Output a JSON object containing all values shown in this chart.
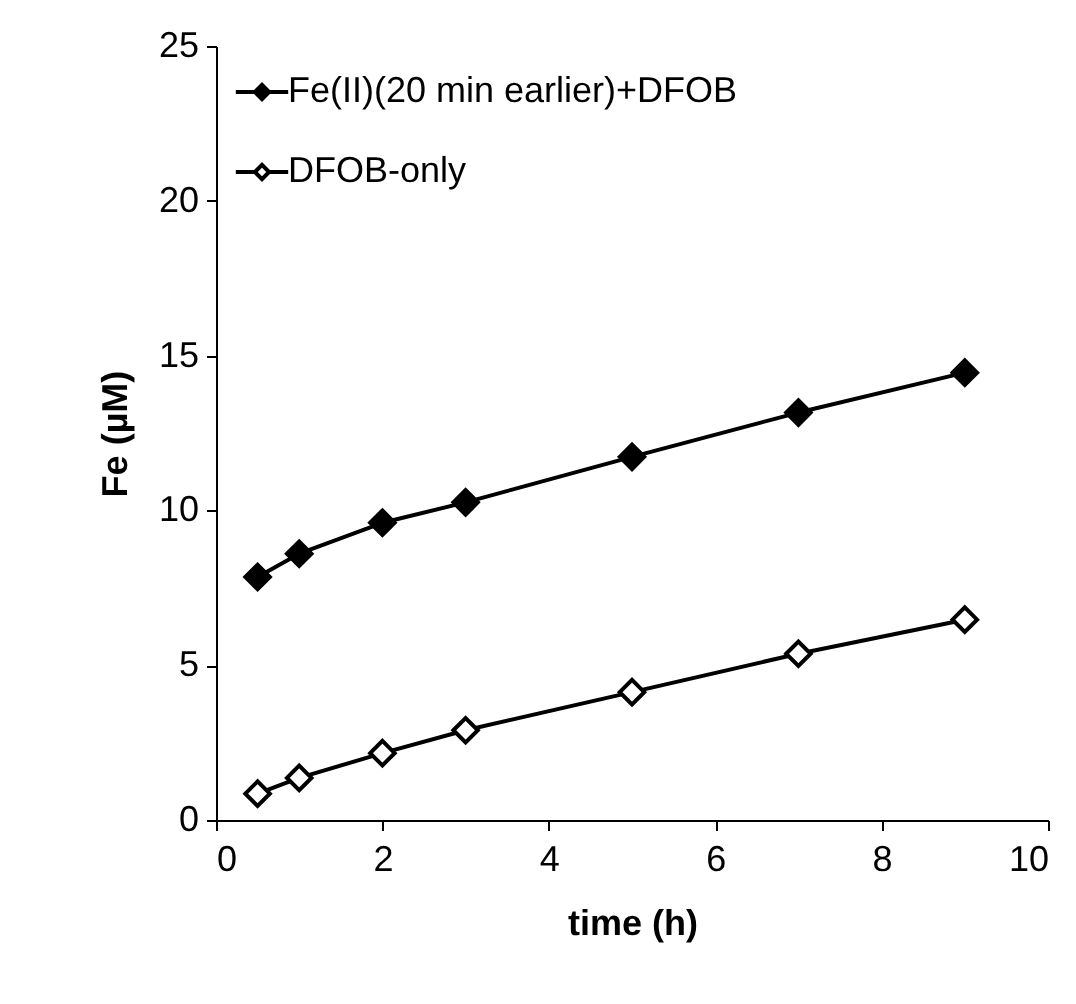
{
  "chart_data": {
    "type": "line",
    "xlabel": "time (h)",
    "ylabel": "Fe (µM)",
    "x": [
      0.5,
      1,
      2,
      3,
      5,
      7,
      9
    ],
    "series": [
      {
        "name": "Fe(II)(20 min earlier)+DFOB",
        "color": "#000000",
        "values": [
          7.85,
          8.6,
          9.6,
          10.26,
          11.73,
          13.16,
          14.45
        ]
      },
      {
        "name": "DFOB-only",
        "color": "#000000",
        "values": [
          0.85,
          1.36,
          2.16,
          2.9,
          4.13,
          5.37,
          6.47
        ]
      }
    ],
    "xlim": [
      0,
      10
    ],
    "ylim": [
      0,
      25
    ],
    "xticks": [
      0,
      2,
      4,
      6,
      8,
      10
    ],
    "yticks": [
      0,
      5,
      10,
      15,
      20,
      25
    ],
    "grid": false,
    "legend": "top left",
    "marker": "diamond",
    "line_style": "solid"
  }
}
